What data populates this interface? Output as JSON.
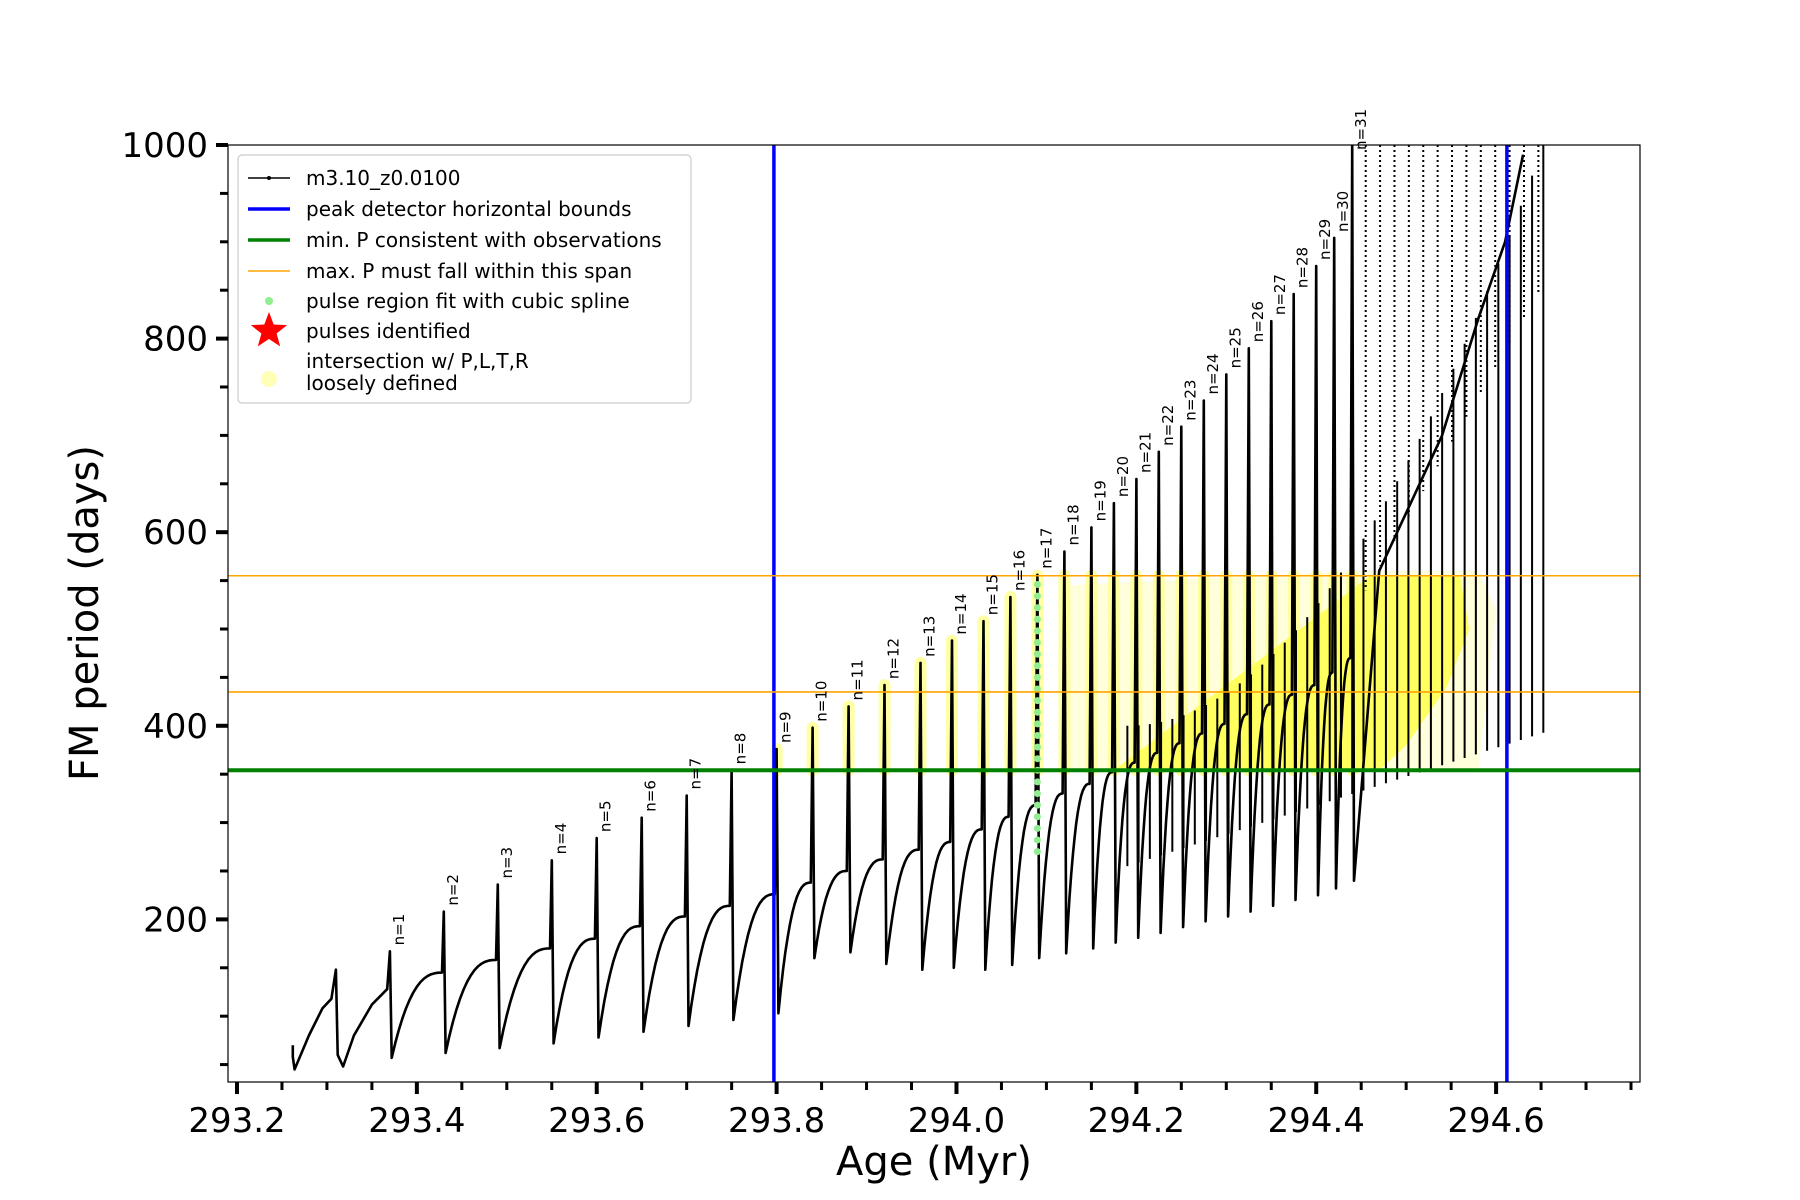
{
  "chart_data": {
    "type": "line",
    "xlabel": "Age (Myr)",
    "ylabel": "FM period (days)",
    "xlim": [
      293.19,
      294.76
    ],
    "ylim": [
      32,
      1000
    ],
    "x_ticks": [
      "293.2",
      "293.4",
      "293.6",
      "293.8",
      "294.0",
      "294.2",
      "294.4",
      "294.6"
    ],
    "x_tick_values": [
      293.2,
      293.4,
      293.6,
      293.8,
      294.0,
      294.2,
      294.4,
      294.6
    ],
    "y_ticks": [
      "200",
      "400",
      "600",
      "800",
      "1000"
    ],
    "y_tick_values": [
      200,
      400,
      600,
      800,
      1000
    ],
    "legend": {
      "position": "upper left",
      "entries": [
        {
          "label": "m3.10_z0.0100",
          "kind": "line-marker",
          "color": "#000000"
        },
        {
          "label": "peak detector horizontal bounds",
          "kind": "line",
          "color": "#0000ff"
        },
        {
          "label": "min. P consistent with observations",
          "kind": "line",
          "color": "#008000"
        },
        {
          "label": "max. P must fall within this span",
          "kind": "thin-line",
          "color": "#ffa500"
        },
        {
          "label": "pulse region fit with cubic spline",
          "kind": "dot",
          "color": "#90ee90"
        },
        {
          "label": "pulses identified",
          "kind": "star",
          "color": "#ff0000"
        },
        {
          "label": "intersection w/ P,L,T,R",
          "label2": "loosely defined",
          "kind": "circle",
          "color": "#ffff99"
        }
      ]
    },
    "reference_lines": {
      "vertical_blue": [
        293.797,
        294.612
      ],
      "horizontal_green": 354,
      "horizontal_orange": [
        435,
        555
      ]
    },
    "series_name": "m3.10_z0.0100",
    "pulses": [
      {
        "n": 1,
        "x": 293.37,
        "peak": 167,
        "base_before": 128,
        "post_min": 57
      },
      {
        "n": 2,
        "x": 293.43,
        "peak": 208,
        "base_before": 145,
        "post_min": 62
      },
      {
        "n": 3,
        "x": 293.49,
        "peak": 236,
        "base_before": 158,
        "post_min": 67
      },
      {
        "n": 4,
        "x": 293.55,
        "peak": 261,
        "base_before": 170,
        "post_min": 72
      },
      {
        "n": 5,
        "x": 293.6,
        "peak": 284,
        "base_before": 180,
        "post_min": 78
      },
      {
        "n": 6,
        "x": 293.65,
        "peak": 305,
        "base_before": 193,
        "post_min": 84
      },
      {
        "n": 7,
        "x": 293.7,
        "peak": 328,
        "base_before": 203,
        "post_min": 90
      },
      {
        "n": 8,
        "x": 293.75,
        "peak": 354,
        "base_before": 214,
        "post_min": 96
      },
      {
        "n": 9,
        "x": 293.8,
        "peak": 376,
        "base_before": 226,
        "post_min": 103
      },
      {
        "n": 10,
        "x": 293.84,
        "peak": 398,
        "base_before": 238,
        "post_min": 160
      },
      {
        "n": 11,
        "x": 293.88,
        "peak": 420,
        "base_before": 250,
        "post_min": 166
      },
      {
        "n": 12,
        "x": 293.92,
        "peak": 442,
        "base_before": 262,
        "post_min": 154
      },
      {
        "n": 13,
        "x": 293.96,
        "peak": 465,
        "base_before": 272,
        "post_min": 148
      },
      {
        "n": 14,
        "x": 293.995,
        "peak": 488,
        "base_before": 280,
        "post_min": 150
      },
      {
        "n": 15,
        "x": 294.03,
        "peak": 508,
        "base_before": 293,
        "post_min": 148
      },
      {
        "n": 16,
        "x": 294.06,
        "peak": 533,
        "base_before": 306,
        "post_min": 153
      },
      {
        "n": 17,
        "x": 294.09,
        "peak": 556,
        "base_before": 318,
        "post_min": 160
      },
      {
        "n": 18,
        "x": 294.12,
        "peak": 580,
        "base_before": 330,
        "post_min": 165
      },
      {
        "n": 19,
        "x": 294.15,
        "peak": 605,
        "base_before": 340,
        "post_min": 170
      },
      {
        "n": 20,
        "x": 294.175,
        "peak": 630,
        "base_before": 352,
        "post_min": 176
      },
      {
        "n": 21,
        "x": 294.2,
        "peak": 655,
        "base_before": 362,
        "post_min": 181
      },
      {
        "n": 22,
        "x": 294.225,
        "peak": 683,
        "base_before": 372,
        "post_min": 186
      },
      {
        "n": 23,
        "x": 294.25,
        "peak": 709,
        "base_before": 382,
        "post_min": 192
      },
      {
        "n": 24,
        "x": 294.275,
        "peak": 736,
        "base_before": 392,
        "post_min": 198
      },
      {
        "n": 25,
        "x": 294.3,
        "peak": 763,
        "base_before": 402,
        "post_min": 203
      },
      {
        "n": 26,
        "x": 294.325,
        "peak": 790,
        "base_before": 412,
        "post_min": 208
      },
      {
        "n": 27,
        "x": 294.35,
        "peak": 818,
        "base_before": 422,
        "post_min": 214
      },
      {
        "n": 28,
        "x": 294.375,
        "peak": 846,
        "base_before": 432,
        "post_min": 220
      },
      {
        "n": 29,
        "x": 294.4,
        "peak": 875,
        "base_before": 442,
        "post_min": 225
      },
      {
        "n": 30,
        "x": 294.42,
        "peak": 904,
        "base_before": 455,
        "post_min": 232
      },
      {
        "n": 31,
        "x": 294.44,
        "peak": 1000,
        "base_before": 470,
        "post_min": 240
      }
    ]
  }
}
